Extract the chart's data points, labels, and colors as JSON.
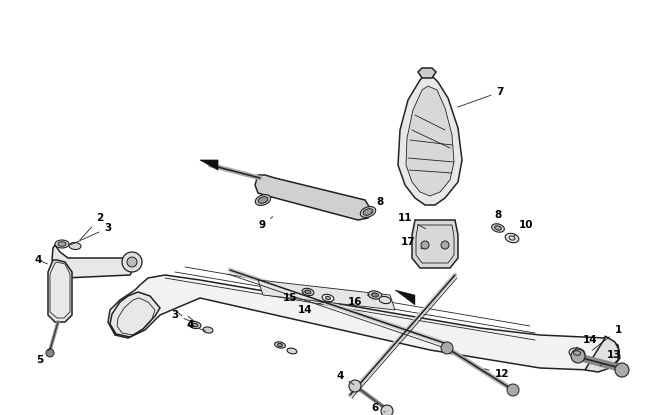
{
  "bg_color": "#ffffff",
  "line_color": "#222222",
  "label_color": "#000000",
  "fig_width": 6.5,
  "fig_height": 4.15,
  "dpi": 100
}
